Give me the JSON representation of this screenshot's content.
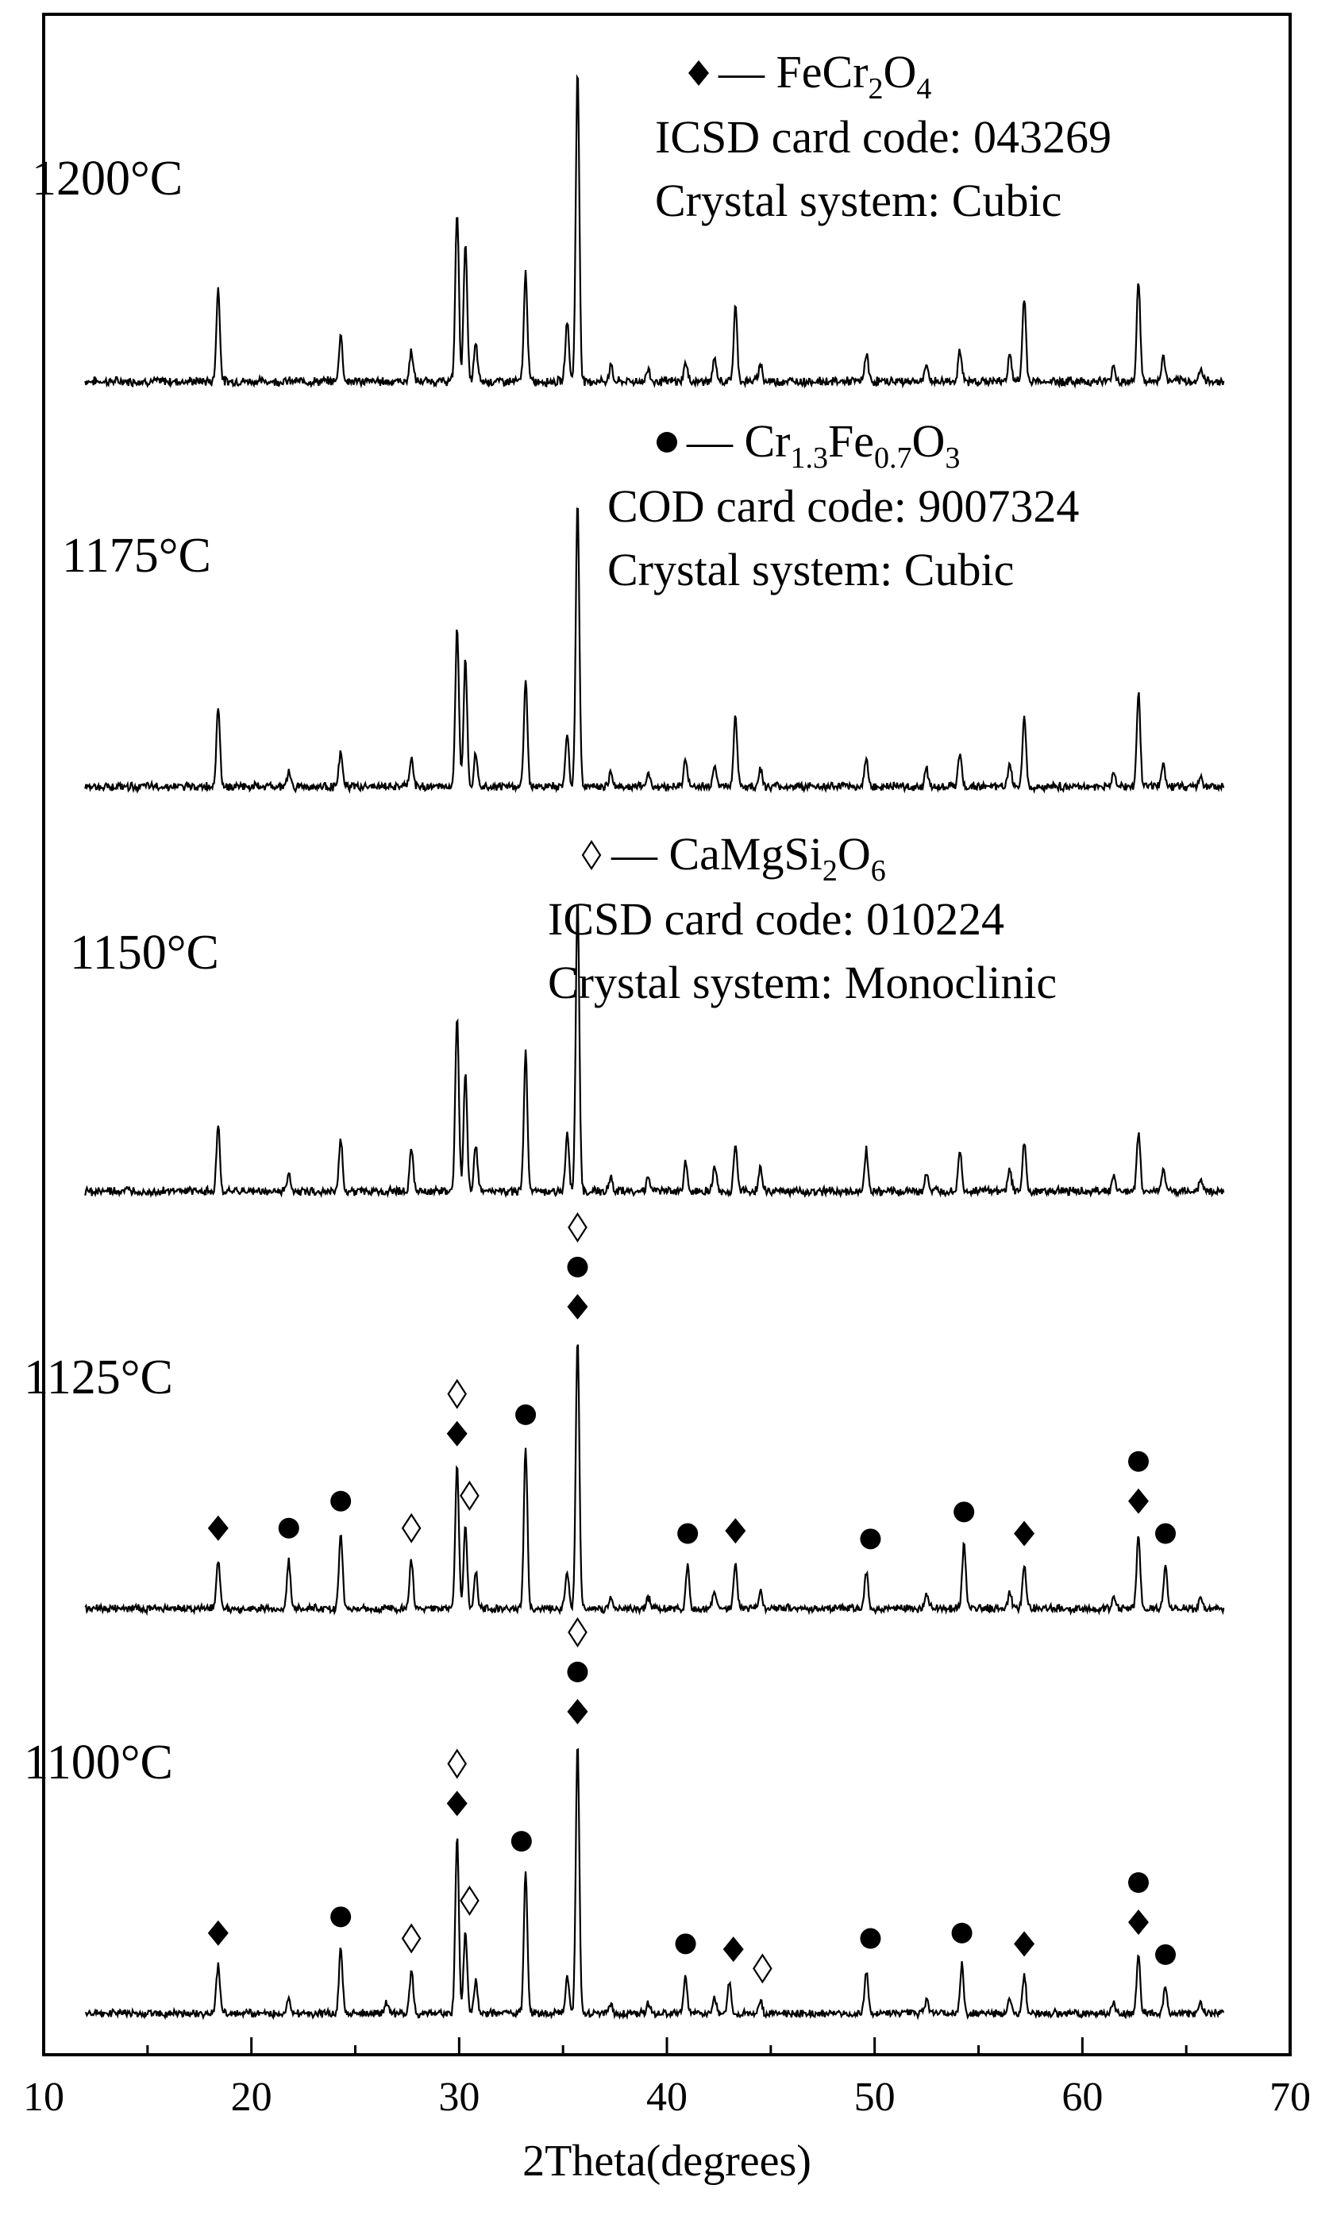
{
  "chart_data": {
    "type": "line",
    "xlabel": "2Theta(degrees)",
    "ylabel": "",
    "xlim": [
      10,
      70
    ],
    "x_ticks": [
      "10",
      "20",
      "30",
      "40",
      "50",
      "60",
      "70"
    ],
    "grid": false,
    "panels": [
      {
        "label": "1200°C"
      },
      {
        "label": "1175°C"
      },
      {
        "label": "1150°C"
      },
      {
        "label": "1125°C"
      },
      {
        "label": "1100°C"
      }
    ],
    "legend": [
      {
        "symbol": "◆",
        "dash": "—",
        "formula": [
          [
            "FeCr",
            ""
          ],
          [
            "2",
            "sub"
          ],
          [
            "O",
            ""
          ],
          [
            "4",
            "sub"
          ]
        ],
        "lines": [
          "ICSD card code: 043269",
          "Crystal system: Cubic"
        ]
      },
      {
        "symbol": "●",
        "dash": "—",
        "formula": [
          [
            "Cr",
            ""
          ],
          [
            "1.3",
            "sub"
          ],
          [
            "Fe",
            ""
          ],
          [
            "0.7",
            "sub"
          ],
          [
            "O",
            ""
          ],
          [
            "3",
            "sub"
          ]
        ],
        "lines": [
          "COD card code: 9007324",
          "Crystal system: Cubic"
        ]
      },
      {
        "symbol": "◊",
        "dash": "—",
        "formula": [
          [
            "CaMgSi",
            ""
          ],
          [
            "2",
            "sub"
          ],
          [
            "O",
            ""
          ],
          [
            "6",
            "sub"
          ]
        ],
        "lines": [
          "ICSD card code: 010224",
          "Crystal system: Monoclinic"
        ]
      }
    ],
    "series": [
      {
        "temperature": "1200°C",
        "peaks": [
          [
            18.4,
            0.3
          ],
          [
            24.3,
            0.15
          ],
          [
            27.7,
            0.1
          ],
          [
            29.9,
            0.55
          ],
          [
            30.3,
            0.45
          ],
          [
            30.8,
            0.12
          ],
          [
            33.2,
            0.35
          ],
          [
            35.2,
            0.2
          ],
          [
            35.7,
            1.0
          ],
          [
            37.3,
            0.05
          ],
          [
            39.1,
            0.04
          ],
          [
            40.9,
            0.06
          ],
          [
            42.3,
            0.07
          ],
          [
            43.3,
            0.24
          ],
          [
            44.5,
            0.06
          ],
          [
            49.6,
            0.09
          ],
          [
            52.5,
            0.05
          ],
          [
            54.1,
            0.1
          ],
          [
            56.5,
            0.09
          ],
          [
            57.2,
            0.27
          ],
          [
            61.5,
            0.05
          ],
          [
            62.7,
            0.32
          ],
          [
            63.9,
            0.08
          ],
          [
            65.7,
            0.04
          ]
        ]
      },
      {
        "temperature": "1175°C",
        "peaks": [
          [
            18.4,
            0.28
          ],
          [
            21.8,
            0.05
          ],
          [
            24.3,
            0.12
          ],
          [
            27.7,
            0.1
          ],
          [
            29.9,
            0.55
          ],
          [
            30.3,
            0.45
          ],
          [
            30.8,
            0.12
          ],
          [
            33.2,
            0.37
          ],
          [
            35.2,
            0.18
          ],
          [
            35.7,
            1.0
          ],
          [
            37.3,
            0.05
          ],
          [
            39.1,
            0.05
          ],
          [
            40.9,
            0.1
          ],
          [
            42.3,
            0.08
          ],
          [
            43.3,
            0.25
          ],
          [
            44.5,
            0.06
          ],
          [
            49.6,
            0.1
          ],
          [
            52.5,
            0.06
          ],
          [
            54.1,
            0.12
          ],
          [
            56.5,
            0.08
          ],
          [
            57.2,
            0.25
          ],
          [
            61.5,
            0.05
          ],
          [
            62.7,
            0.33
          ],
          [
            63.9,
            0.08
          ],
          [
            65.7,
            0.04
          ]
        ]
      },
      {
        "temperature": "1150°C",
        "peaks": [
          [
            18.4,
            0.22
          ],
          [
            21.8,
            0.06
          ],
          [
            24.3,
            0.18
          ],
          [
            27.7,
            0.15
          ],
          [
            29.9,
            0.6
          ],
          [
            30.3,
            0.4
          ],
          [
            30.8,
            0.15
          ],
          [
            33.2,
            0.47
          ],
          [
            35.2,
            0.2
          ],
          [
            35.7,
            1.0
          ],
          [
            37.3,
            0.05
          ],
          [
            39.1,
            0.05
          ],
          [
            40.9,
            0.1
          ],
          [
            42.3,
            0.08
          ],
          [
            43.3,
            0.16
          ],
          [
            44.5,
            0.08
          ],
          [
            49.6,
            0.14
          ],
          [
            52.5,
            0.06
          ],
          [
            54.1,
            0.14
          ],
          [
            56.5,
            0.08
          ],
          [
            57.2,
            0.16
          ],
          [
            61.5,
            0.05
          ],
          [
            62.7,
            0.2
          ],
          [
            63.9,
            0.08
          ],
          [
            65.7,
            0.04
          ]
        ]
      },
      {
        "temperature": "1125°C",
        "peaks": [
          [
            18.4,
            0.18
          ],
          [
            21.8,
            0.18
          ],
          [
            24.3,
            0.28
          ],
          [
            27.7,
            0.18
          ],
          [
            29.9,
            0.53
          ],
          [
            30.3,
            0.3
          ],
          [
            30.8,
            0.14
          ],
          [
            33.2,
            0.6
          ],
          [
            35.2,
            0.14
          ],
          [
            35.7,
            1.0
          ],
          [
            37.3,
            0.04
          ],
          [
            39.1,
            0.04
          ],
          [
            41.0,
            0.16
          ],
          [
            42.3,
            0.06
          ],
          [
            43.3,
            0.17
          ],
          [
            44.5,
            0.06
          ],
          [
            49.6,
            0.14
          ],
          [
            52.5,
            0.05
          ],
          [
            54.3,
            0.24
          ],
          [
            56.5,
            0.06
          ],
          [
            57.2,
            0.16
          ],
          [
            61.5,
            0.04
          ],
          [
            62.7,
            0.28
          ],
          [
            64.0,
            0.16
          ],
          [
            65.7,
            0.04
          ]
        ]
      },
      {
        "temperature": "1100°C",
        "peaks": [
          [
            18.4,
            0.18
          ],
          [
            21.8,
            0.06
          ],
          [
            24.3,
            0.24
          ],
          [
            26.5,
            0.04
          ],
          [
            27.7,
            0.16
          ],
          [
            29.9,
            0.66
          ],
          [
            30.3,
            0.3
          ],
          [
            30.8,
            0.12
          ],
          [
            33.2,
            0.52
          ],
          [
            35.2,
            0.14
          ],
          [
            35.7,
            1.0
          ],
          [
            37.3,
            0.04
          ],
          [
            39.1,
            0.04
          ],
          [
            40.9,
            0.14
          ],
          [
            42.3,
            0.06
          ],
          [
            43.0,
            0.12
          ],
          [
            44.5,
            0.05
          ],
          [
            49.6,
            0.16
          ],
          [
            52.5,
            0.05
          ],
          [
            54.2,
            0.18
          ],
          [
            56.5,
            0.06
          ],
          [
            57.2,
            0.14
          ],
          [
            61.5,
            0.04
          ],
          [
            62.7,
            0.22
          ],
          [
            64.0,
            0.1
          ],
          [
            65.7,
            0.04
          ]
        ]
      }
    ],
    "annotations": [
      {
        "panel": 3,
        "marks": [
          {
            "x": 18.4,
            "symbols": [
              "◆"
            ]
          },
          {
            "x": 21.8,
            "symbols": [
              "●"
            ]
          },
          {
            "x": 24.3,
            "symbols": [
              "●"
            ]
          },
          {
            "x": 27.7,
            "symbols": [
              "◊"
            ]
          },
          {
            "x": 29.9,
            "symbols": [
              "◆",
              "◊"
            ]
          },
          {
            "x": 30.5,
            "symbols": [
              "◊"
            ]
          },
          {
            "x": 33.2,
            "symbols": [
              "●"
            ]
          },
          {
            "x": 35.7,
            "symbols": [
              "◆",
              "●",
              "◊"
            ]
          },
          {
            "x": 41.0,
            "symbols": [
              "●"
            ]
          },
          {
            "x": 43.3,
            "symbols": [
              "◆"
            ]
          },
          {
            "x": 49.8,
            "symbols": [
              "●"
            ]
          },
          {
            "x": 54.3,
            "symbols": [
              "●"
            ]
          },
          {
            "x": 57.2,
            "symbols": [
              "◆"
            ]
          },
          {
            "x": 62.7,
            "symbols": [
              "◆",
              "●"
            ]
          },
          {
            "x": 64.0,
            "symbols": [
              "●"
            ]
          }
        ]
      },
      {
        "panel": 4,
        "marks": [
          {
            "x": 18.4,
            "symbols": [
              "◆"
            ]
          },
          {
            "x": 24.3,
            "symbols": [
              "●"
            ]
          },
          {
            "x": 27.7,
            "symbols": [
              "◊"
            ]
          },
          {
            "x": 29.9,
            "symbols": [
              "◆",
              "◊"
            ]
          },
          {
            "x": 30.5,
            "symbols": [
              "◊"
            ]
          },
          {
            "x": 33.0,
            "symbols": [
              "●"
            ]
          },
          {
            "x": 35.7,
            "symbols": [
              "◆",
              "●",
              "◊"
            ]
          },
          {
            "x": 40.9,
            "symbols": [
              "●"
            ]
          },
          {
            "x": 43.2,
            "symbols": [
              "◆"
            ]
          },
          {
            "x": 44.6,
            "symbols": [
              "◊"
            ]
          },
          {
            "x": 49.8,
            "symbols": [
              "●"
            ]
          },
          {
            "x": 54.2,
            "symbols": [
              "●"
            ]
          },
          {
            "x": 57.2,
            "symbols": [
              "◆"
            ]
          },
          {
            "x": 62.7,
            "symbols": [
              "◆",
              "●"
            ]
          },
          {
            "x": 64.0,
            "symbols": [
              "●"
            ]
          }
        ]
      }
    ]
  }
}
